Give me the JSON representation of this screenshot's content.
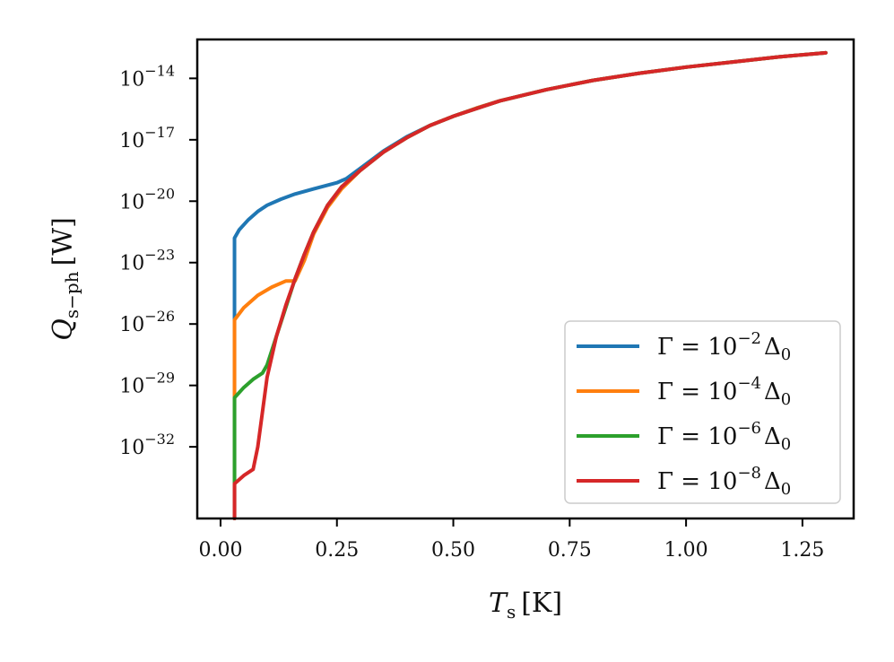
{
  "chart_data": {
    "type": "line",
    "title": "",
    "xlabel": "T_s [K]",
    "ylabel": "Q_s−ph [W]",
    "xlabel_parts": {
      "symbol": "T",
      "sub": "s",
      "unit": "[K]"
    },
    "ylabel_parts": {
      "symbol": "Q",
      "sub": "s−ph",
      "unit": "[W]"
    },
    "xlim": [
      -0.05,
      1.36
    ],
    "ylim_log10": [
      -35.5,
      -12.1
    ],
    "x_ticks": [
      0.0,
      0.25,
      0.5,
      0.75,
      1.0,
      1.25
    ],
    "x_tick_labels": [
      "0.00",
      "0.25",
      "0.50",
      "0.75",
      "1.00",
      "1.25"
    ],
    "y_ticks_log10": [
      -14,
      -17,
      -20,
      -23,
      -26,
      -29,
      -32
    ],
    "y_tick_labels": [
      "10",
      "10",
      "10",
      "10",
      "10",
      "10",
      "10"
    ],
    "y_tick_exponents": [
      "−14",
      "−17",
      "−20",
      "−23",
      "−26",
      "−29",
      "−32"
    ],
    "grid": false,
    "legend_position": "lower-right",
    "series": [
      {
        "name": "Γ = 10⁻²Δ₀",
        "legend_prefix": "Γ = 10",
        "legend_exp": "−2",
        "legend_suffix": "Δ",
        "legend_sub": "0",
        "color": "#1f77b4",
        "x": [
          0.03,
          0.03,
          0.04,
          0.06,
          0.08,
          0.1,
          0.13,
          0.16,
          0.2,
          0.25,
          0.27,
          0.3,
          0.35,
          0.4,
          0.45,
          0.5,
          0.55,
          0.6,
          0.7,
          0.8,
          0.9,
          1.0,
          1.1,
          1.2,
          1.3
        ],
        "log10_y": [
          -35.5,
          -21.8,
          -21.4,
          -20.9,
          -20.5,
          -20.2,
          -19.9,
          -19.65,
          -19.4,
          -19.1,
          -18.9,
          -18.4,
          -17.55,
          -16.85,
          -16.3,
          -15.85,
          -15.45,
          -15.1,
          -14.55,
          -14.1,
          -13.75,
          -13.45,
          -13.2,
          -12.95,
          -12.75
        ]
      },
      {
        "name": "Γ = 10⁻⁴Δ₀",
        "legend_prefix": "Γ = 10",
        "legend_exp": "−4",
        "legend_suffix": "Δ",
        "legend_sub": "0",
        "color": "#ff7f0e",
        "x": [
          0.03,
          0.03,
          0.05,
          0.08,
          0.11,
          0.14,
          0.16,
          0.18,
          0.2,
          0.23,
          0.26,
          0.3,
          0.35,
          0.4,
          0.45,
          0.5,
          0.55,
          0.6,
          0.7,
          0.8,
          0.9,
          1.0,
          1.1,
          1.2,
          1.3
        ],
        "log10_y": [
          -35.5,
          -25.8,
          -25.2,
          -24.6,
          -24.2,
          -23.9,
          -23.9,
          -22.9,
          -21.6,
          -20.3,
          -19.4,
          -18.5,
          -17.6,
          -16.9,
          -16.3,
          -15.85,
          -15.45,
          -15.1,
          -14.55,
          -14.1,
          -13.75,
          -13.45,
          -13.2,
          -12.95,
          -12.75
        ]
      },
      {
        "name": "Γ = 10⁻⁶Δ₀",
        "legend_prefix": "Γ = 10",
        "legend_exp": "−6",
        "legend_suffix": "Δ",
        "legend_sub": "0",
        "color": "#2ca02c",
        "x": [
          0.03,
          0.03,
          0.05,
          0.07,
          0.09,
          0.1,
          0.12,
          0.14,
          0.16,
          0.18,
          0.2,
          0.23,
          0.26,
          0.3,
          0.35,
          0.4,
          0.45,
          0.5,
          0.6,
          0.7,
          0.8,
          0.9,
          1.0,
          1.1,
          1.2,
          1.3
        ],
        "log10_y": [
          -35.5,
          -29.6,
          -29.1,
          -28.7,
          -28.4,
          -28.0,
          -26.6,
          -25.2,
          -23.8,
          -22.6,
          -21.5,
          -20.2,
          -19.3,
          -18.5,
          -17.6,
          -16.9,
          -16.3,
          -15.85,
          -15.1,
          -14.55,
          -14.1,
          -13.75,
          -13.45,
          -13.2,
          -12.95,
          -12.75
        ]
      },
      {
        "name": "Γ = 10⁻⁸Δ₀",
        "legend_prefix": "Γ = 10",
        "legend_exp": "−8",
        "legend_suffix": "Δ",
        "legend_sub": "0",
        "color": "#d62728",
        "x": [
          0.03,
          0.03,
          0.05,
          0.07,
          0.08,
          0.09,
          0.1,
          0.12,
          0.14,
          0.16,
          0.18,
          0.2,
          0.23,
          0.26,
          0.3,
          0.35,
          0.4,
          0.45,
          0.5,
          0.6,
          0.7,
          0.8,
          0.9,
          1.0,
          1.1,
          1.2,
          1.3
        ],
        "log10_y": [
          -35.5,
          -33.8,
          -33.4,
          -33.1,
          -32.0,
          -30.3,
          -28.6,
          -26.6,
          -25.1,
          -23.8,
          -22.6,
          -21.5,
          -20.2,
          -19.3,
          -18.5,
          -17.6,
          -16.9,
          -16.3,
          -15.85,
          -15.1,
          -14.55,
          -14.1,
          -13.75,
          -13.45,
          -13.2,
          -12.95,
          -12.75
        ]
      }
    ]
  }
}
